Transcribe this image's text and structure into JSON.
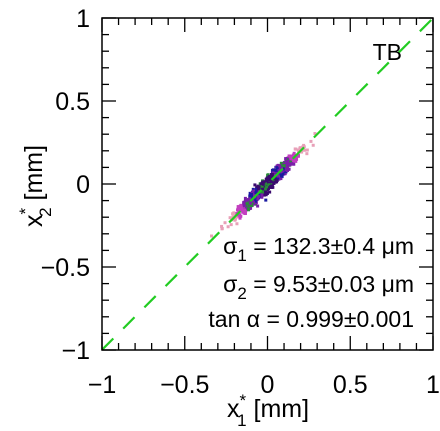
{
  "chart_data": {
    "type": "heatmap",
    "panel_label": "TB",
    "xlabel": {
      "main": "x",
      "sup": "*",
      "sub": "1",
      "unit": " [mm]"
    },
    "ylabel": {
      "main": "x",
      "sup": "*",
      "sub": "2",
      "unit": " [mm]"
    },
    "xlim": [
      -1,
      1
    ],
    "ylim": [
      -1,
      1
    ],
    "xticks": [
      -1,
      -0.5,
      0,
      0.5,
      1
    ],
    "yticks": [
      -1,
      -0.5,
      0,
      0.5,
      1
    ],
    "xtick_labels": [
      "−1",
      "−0.5",
      "0",
      "0.5",
      "1"
    ],
    "ytick_labels": [
      "−1",
      "−0.5",
      "0",
      "0.5",
      "1"
    ],
    "fit_line": {
      "slope": 0.999,
      "intercept": 0,
      "color": "#22cc22",
      "style": "dashed"
    },
    "distribution": {
      "center": [
        0,
        0
      ],
      "sigma_major_mm": 0.1323,
      "sigma_minor_mm": 0.00953,
      "angle_deg": 45,
      "colormap": [
        "#3a0a6e",
        "#1a1aa0",
        "#7a1fa8",
        "#c23fbf",
        "#2a8c3a",
        "#e8a0b8"
      ]
    },
    "annotations": [
      {
        "sym": "σ",
        "sub": "1",
        "rest": " = 132.3±0.4 μm"
      },
      {
        "sym": "σ",
        "sub": "2",
        "rest": " = 9.53±0.03 μm"
      },
      {
        "sym": "",
        "sub": "",
        "rest": "tan α = 0.999±0.001"
      }
    ]
  }
}
